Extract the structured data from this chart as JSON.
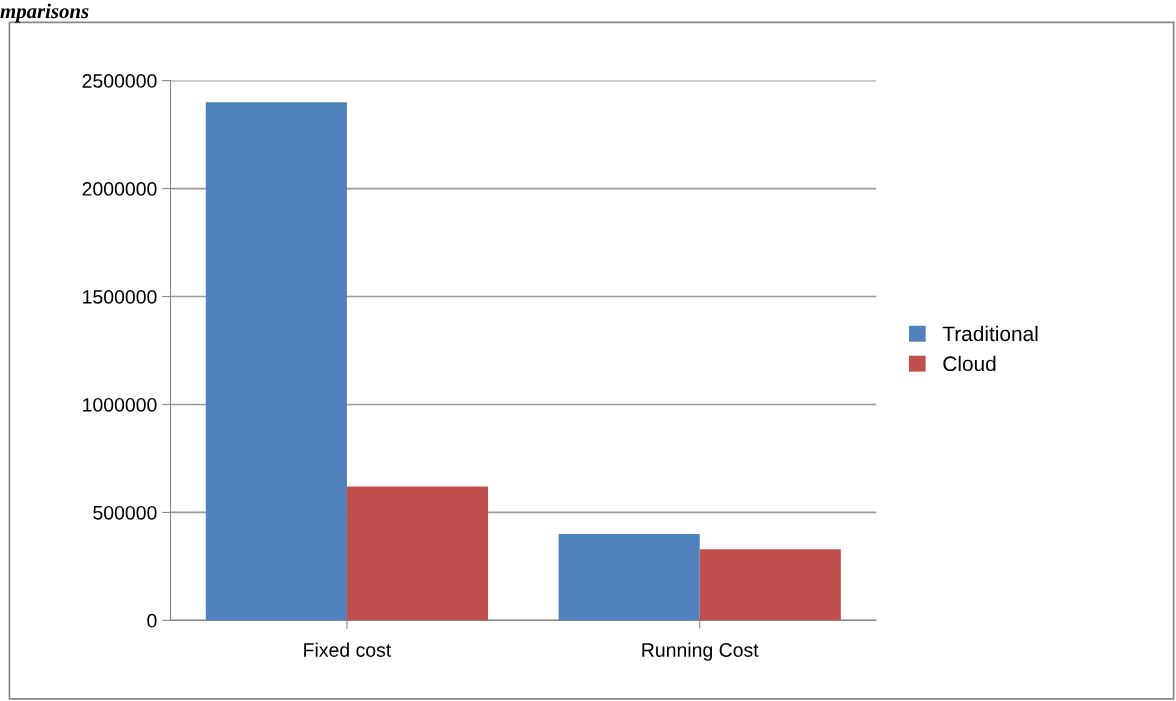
{
  "chart_data": {
    "type": "bar",
    "title": "mparisons",
    "categories": [
      "Fixed cost",
      "Running Cost"
    ],
    "series": [
      {
        "name": "Traditional",
        "color": "#4f81bd",
        "values": [
          2400000,
          400000
        ]
      },
      {
        "name": "Cloud",
        "color": "#c0504d",
        "values": [
          620000,
          330000
        ]
      }
    ],
    "ylim": [
      0,
      2500000
    ],
    "yticks": [
      0,
      500000,
      1000000,
      1500000,
      2000000,
      2500000
    ],
    "grid": "y",
    "legend": "right"
  }
}
